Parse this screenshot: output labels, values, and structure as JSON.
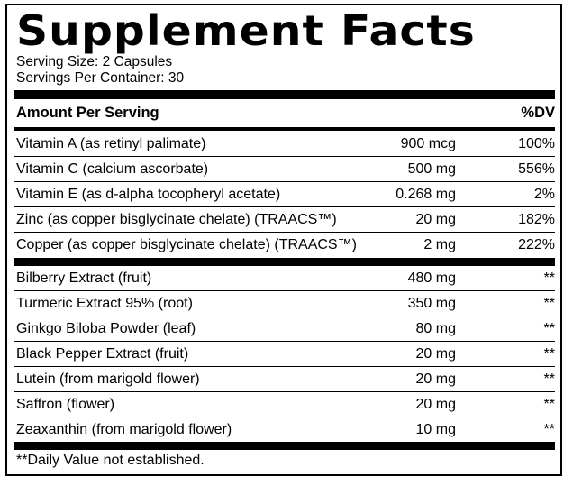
{
  "panel": {
    "title": "Supplement Facts",
    "serving_size": "Serving Size: 2 Capsules",
    "servings_per_container": "Servings Per Container: 30"
  },
  "header": {
    "amount_label": "Amount Per Serving",
    "dv_label": "%DV"
  },
  "vitamins": [
    {
      "name": "Vitamin A (as retinyl palimate)",
      "amount": "900 mcg",
      "dv": "100%"
    },
    {
      "name": "Vitamin C (calcium ascorbate)",
      "amount": "500 mg",
      "dv": "556%"
    },
    {
      "name": "Vitamin E (as d-alpha tocopheryl acetate)",
      "amount": "0.268 mg",
      "dv": "2%"
    },
    {
      "name": "Zinc (as copper bisglycinate chelate) (TRAACS™)",
      "amount": "20 mg",
      "dv": "182%"
    },
    {
      "name": "Copper (as copper bisglycinate chelate) (TRAACS™)",
      "amount": "2 mg",
      "dv": "222%"
    }
  ],
  "extracts": [
    {
      "name": "Bilberry Extract (fruit)",
      "amount": "480 mg",
      "dv": "**"
    },
    {
      "name": "Turmeric Extract 95% (root)",
      "amount": "350 mg",
      "dv": "**"
    },
    {
      "name": "Ginkgo Biloba Powder (leaf)",
      "amount": "80 mg",
      "dv": "**"
    },
    {
      "name": "Black Pepper Extract (fruit)",
      "amount": "20 mg",
      "dv": "**"
    },
    {
      "name": "Lutein (from marigold flower)",
      "amount": "20 mg",
      "dv": "**"
    },
    {
      "name": "Saffron (flower)",
      "amount": "20 mg",
      "dv": "**"
    },
    {
      "name": "Zeaxanthin (from marigold flower)",
      "amount": "10 mg",
      "dv": "**"
    }
  ],
  "footnote": "**Daily Value not established."
}
